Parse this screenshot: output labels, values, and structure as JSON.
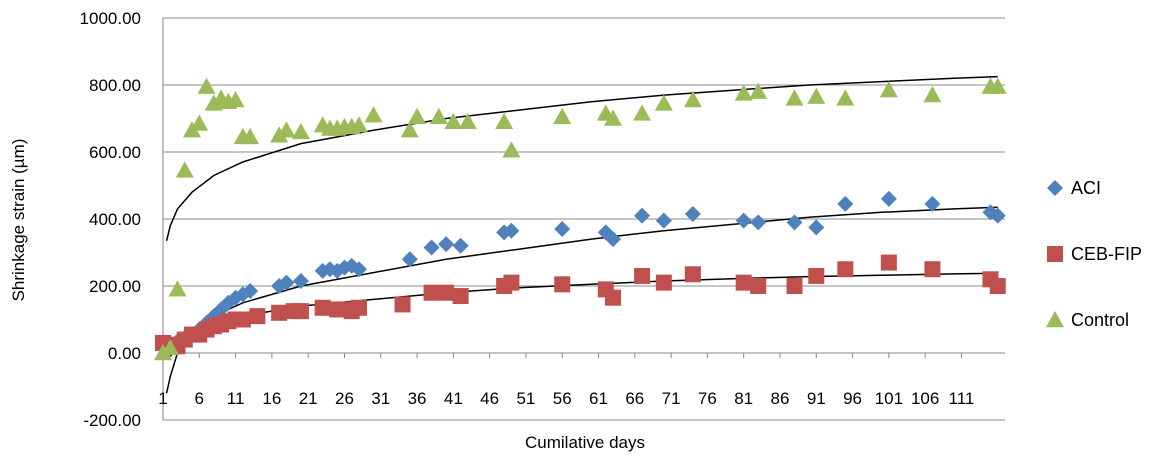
{
  "chart_data": {
    "type": "scatter",
    "title": "",
    "xlabel": "Cumilative days",
    "ylabel": "Shrinkage strain (µm)",
    "xlim": [
      1,
      117
    ],
    "ylim": [
      -200,
      1000
    ],
    "yticks": [
      "1000.00",
      "800.00",
      "600.00",
      "400.00",
      "200.00",
      "0.00",
      "-200.00"
    ],
    "xticks": [
      "1",
      "6",
      "11",
      "16",
      "21",
      "26",
      "31",
      "36",
      "41",
      "46",
      "51",
      "56",
      "61",
      "66",
      "71",
      "76",
      "81",
      "86",
      "91",
      "96",
      "101",
      "106",
      "111"
    ],
    "grid": "horizontal",
    "legend": "right",
    "series": [
      {
        "name": "ACI",
        "color": "#4F81BD",
        "marker": "diamond",
        "points": [
          [
            2,
            20
          ],
          [
            3,
            35
          ],
          [
            4,
            45
          ],
          [
            5,
            55
          ],
          [
            6,
            70
          ],
          [
            7,
            90
          ],
          [
            8,
            110
          ],
          [
            9,
            130
          ],
          [
            10,
            150
          ],
          [
            11,
            165
          ],
          [
            12,
            175
          ],
          [
            13,
            185
          ],
          [
            17,
            200
          ],
          [
            18,
            210
          ],
          [
            20,
            215
          ],
          [
            23,
            245
          ],
          [
            24,
            250
          ],
          [
            25,
            245
          ],
          [
            26,
            255
          ],
          [
            27,
            260
          ],
          [
            28,
            250
          ],
          [
            35,
            280
          ],
          [
            38,
            315
          ],
          [
            40,
            325
          ],
          [
            42,
            320
          ],
          [
            48,
            360
          ],
          [
            49,
            365
          ],
          [
            56,
            370
          ],
          [
            62,
            360
          ],
          [
            63,
            340
          ],
          [
            67,
            410
          ],
          [
            70,
            395
          ],
          [
            74,
            415
          ],
          [
            81,
            395
          ],
          [
            83,
            390
          ],
          [
            88,
            390
          ],
          [
            91,
            375
          ],
          [
            95,
            445
          ],
          [
            101,
            460
          ],
          [
            107,
            445
          ],
          [
            115,
            420
          ],
          [
            116,
            410
          ]
        ],
        "trend": [
          [
            1.5,
            -120
          ],
          [
            2,
            -70
          ],
          [
            3,
            0
          ],
          [
            5,
            60
          ],
          [
            8,
            110
          ],
          [
            12,
            150
          ],
          [
            20,
            200
          ],
          [
            30,
            240
          ],
          [
            40,
            280
          ],
          [
            50,
            310
          ],
          [
            60,
            340
          ],
          [
            70,
            365
          ],
          [
            80,
            385
          ],
          [
            90,
            405
          ],
          [
            100,
            420
          ],
          [
            110,
            430
          ],
          [
            116,
            435
          ]
        ]
      },
      {
        "name": "CEB-FIP",
        "color": "#C0504D",
        "marker": "square",
        "points": [
          [
            1,
            30
          ],
          [
            2,
            25
          ],
          [
            3,
            20
          ],
          [
            4,
            40
          ],
          [
            5,
            55
          ],
          [
            6,
            55
          ],
          [
            7,
            70
          ],
          [
            8,
            80
          ],
          [
            9,
            85
          ],
          [
            10,
            95
          ],
          [
            11,
            100
          ],
          [
            12,
            100
          ],
          [
            14,
            110
          ],
          [
            17,
            120
          ],
          [
            19,
            125
          ],
          [
            20,
            125
          ],
          [
            23,
            135
          ],
          [
            25,
            130
          ],
          [
            26,
            130
          ],
          [
            27,
            125
          ],
          [
            28,
            135
          ],
          [
            34,
            145
          ],
          [
            38,
            180
          ],
          [
            40,
            180
          ],
          [
            42,
            170
          ],
          [
            48,
            200
          ],
          [
            49,
            210
          ],
          [
            56,
            205
          ],
          [
            62,
            190
          ],
          [
            63,
            165
          ],
          [
            67,
            230
          ],
          [
            70,
            210
          ],
          [
            74,
            235
          ],
          [
            81,
            210
          ],
          [
            83,
            200
          ],
          [
            88,
            200
          ],
          [
            91,
            230
          ],
          [
            95,
            250
          ],
          [
            101,
            270
          ],
          [
            107,
            250
          ],
          [
            115,
            220
          ],
          [
            116,
            200
          ]
        ],
        "trend": [
          [
            2,
            -10
          ],
          [
            3,
            20
          ],
          [
            5,
            55
          ],
          [
            8,
            85
          ],
          [
            12,
            110
          ],
          [
            20,
            140
          ],
          [
            30,
            160
          ],
          [
            40,
            180
          ],
          [
            50,
            195
          ],
          [
            60,
            205
          ],
          [
            70,
            215
          ],
          [
            80,
            222
          ],
          [
            90,
            228
          ],
          [
            100,
            232
          ],
          [
            110,
            236
          ],
          [
            116,
            238
          ]
        ]
      },
      {
        "name": "Control",
        "color": "#9BBB59",
        "marker": "triangle",
        "points": [
          [
            1,
            0
          ],
          [
            2,
            15
          ],
          [
            3,
            190
          ],
          [
            4,
            545
          ],
          [
            5,
            665
          ],
          [
            6,
            685
          ],
          [
            7,
            795
          ],
          [
            8,
            745
          ],
          [
            9,
            760
          ],
          [
            10,
            750
          ],
          [
            11,
            755
          ],
          [
            12,
            645
          ],
          [
            13,
            645
          ],
          [
            17,
            650
          ],
          [
            18,
            665
          ],
          [
            20,
            660
          ],
          [
            23,
            680
          ],
          [
            24,
            670
          ],
          [
            25,
            670
          ],
          [
            26,
            675
          ],
          [
            27,
            675
          ],
          [
            28,
            680
          ],
          [
            30,
            710
          ],
          [
            35,
            665
          ],
          [
            36,
            705
          ],
          [
            39,
            705
          ],
          [
            41,
            690
          ],
          [
            43,
            690
          ],
          [
            48,
            690
          ],
          [
            49,
            605
          ],
          [
            56,
            705
          ],
          [
            62,
            715
          ],
          [
            63,
            700
          ],
          [
            67,
            715
          ],
          [
            70,
            745
          ],
          [
            74,
            755
          ],
          [
            81,
            775
          ],
          [
            83,
            780
          ],
          [
            88,
            760
          ],
          [
            91,
            765
          ],
          [
            95,
            760
          ],
          [
            101,
            785
          ],
          [
            107,
            770
          ],
          [
            115,
            795
          ],
          [
            116,
            795
          ]
        ],
        "trend": [
          [
            1.5,
            335
          ],
          [
            2,
            380
          ],
          [
            3,
            430
          ],
          [
            5,
            480
          ],
          [
            8,
            530
          ],
          [
            12,
            570
          ],
          [
            20,
            625
          ],
          [
            30,
            665
          ],
          [
            40,
            700
          ],
          [
            50,
            725
          ],
          [
            60,
            750
          ],
          [
            70,
            770
          ],
          [
            80,
            785
          ],
          [
            90,
            800
          ],
          [
            100,
            810
          ],
          [
            110,
            820
          ],
          [
            116,
            825
          ]
        ]
      }
    ]
  }
}
